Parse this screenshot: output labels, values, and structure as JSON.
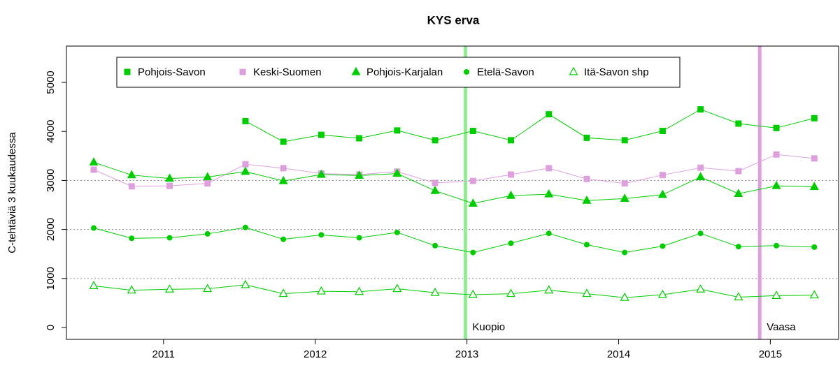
{
  "chart_data": {
    "type": "line",
    "title": "KYS erva",
    "y_label": "C-tehtäviä 3 kuukaudessa",
    "x": [
      2010.54,
      2010.79,
      2011.04,
      2011.29,
      2011.54,
      2011.79,
      2012.04,
      2012.29,
      2012.54,
      2012.79,
      2013.04,
      2013.29,
      2013.54,
      2013.79,
      2014.04,
      2014.29,
      2014.54,
      2014.79,
      2015.04,
      2015.29
    ],
    "series": [
      {
        "name": "Pohjois-Savon",
        "color": "#00cd00",
        "marker": "square",
        "values": [
          null,
          null,
          null,
          null,
          4210,
          3790,
          3930,
          3860,
          4020,
          3820,
          4010,
          3820,
          4350,
          3870,
          3820,
          4010,
          4450,
          4160,
          4070,
          4270
        ]
      },
      {
        "name": "Keski-Suomen",
        "color": "#dda0dd",
        "marker": "square",
        "values": [
          3220,
          2880,
          2890,
          2940,
          3330,
          3250,
          3140,
          3120,
          3180,
          2950,
          2990,
          3120,
          3250,
          3030,
          2940,
          3110,
          3260,
          3190,
          3530,
          3450
        ]
      },
      {
        "name": "Pohjois-Karjalan",
        "color": "#00cd00",
        "marker": "triangle",
        "values": [
          3370,
          3110,
          3040,
          3070,
          3180,
          2990,
          3120,
          3100,
          3140,
          2790,
          2530,
          2690,
          2720,
          2590,
          2630,
          2710,
          3070,
          2730,
          2890,
          2870
        ]
      },
      {
        "name": "Etelä-Savon",
        "color": "#00cd00",
        "marker": "circle",
        "values": [
          2030,
          1820,
          1830,
          1910,
          2040,
          1800,
          1890,
          1830,
          1940,
          1670,
          1530,
          1720,
          1920,
          1690,
          1530,
          1660,
          1920,
          1650,
          1670,
          1640
        ]
      },
      {
        "name": "Itä-Savon shp",
        "color": "#00cd00",
        "marker": "open-triangle",
        "values": [
          850,
          760,
          780,
          790,
          870,
          690,
          740,
          730,
          790,
          710,
          670,
          690,
          760,
          690,
          610,
          670,
          780,
          620,
          650,
          660
        ]
      }
    ],
    "xlim": [
      2010.36,
      2015.45
    ],
    "xticks": [
      2011,
      2012,
      2013,
      2014,
      2015
    ],
    "ylim": [
      -242,
      5741
    ],
    "yticks": [
      0,
      1000,
      2000,
      3000,
      4000,
      5000
    ],
    "grid_lines": [
      1000,
      2000,
      3000
    ],
    "annotations": [
      {
        "x": 2012.99,
        "label": "Kuopio",
        "color": "#90ee90"
      },
      {
        "x": 2014.93,
        "label": "Vaasa",
        "color": "#dda0dd"
      }
    ],
    "legend": "top"
  }
}
